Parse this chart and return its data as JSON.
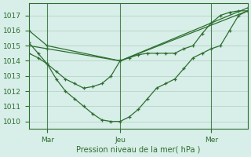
{
  "background_color": "#d8eee8",
  "grid_color": "#b0d0c0",
  "line_color": "#2d6e30",
  "title": "Pression niveau de la mer( hPa )",
  "ylim": [
    1009.5,
    1017.8
  ],
  "yticks": [
    1010,
    1011,
    1012,
    1013,
    1014,
    1015,
    1016,
    1017
  ],
  "xlim": [
    0,
    96
  ],
  "vline_positions": [
    8,
    40,
    80
  ],
  "xtick_positions": [
    8,
    40,
    80
  ],
  "xtick_labels": [
    "Mar",
    "Jeu",
    "Mer"
  ],
  "series": [
    {
      "x": [
        0,
        8,
        40,
        96
      ],
      "y": [
        1016.0,
        1015.0,
        1014.0,
        1017.3
      ]
    },
    {
      "x": [
        0,
        8,
        40,
        96
      ],
      "y": [
        1015.0,
        1014.8,
        1014.0,
        1017.5
      ]
    },
    {
      "x": [
        0,
        4,
        8,
        12,
        16,
        20,
        24,
        28,
        32,
        36,
        40,
        44,
        48,
        52,
        56,
        60,
        64,
        68,
        72,
        76,
        80,
        84,
        88,
        92,
        96
      ],
      "y": [
        1015.2,
        1014.5,
        1013.8,
        1012.8,
        1012.0,
        1011.5,
        1011.0,
        1010.5,
        1010.1,
        1010.0,
        1010.0,
        1010.3,
        1010.8,
        1011.5,
        1012.2,
        1012.5,
        1012.8,
        1013.5,
        1014.2,
        1014.5,
        1014.8,
        1015.0,
        1016.0,
        1017.0,
        1017.3
      ]
    },
    {
      "x": [
        0,
        4,
        8,
        12,
        16,
        20,
        24,
        28,
        32,
        36,
        40,
        44,
        48,
        52,
        56,
        60,
        64,
        68,
        72,
        76,
        80,
        84,
        88,
        92,
        96
      ],
      "y": [
        1014.5,
        1014.2,
        1013.8,
        1013.3,
        1012.8,
        1012.5,
        1012.2,
        1012.3,
        1012.5,
        1013.0,
        1014.0,
        1014.2,
        1014.4,
        1014.5,
        1014.5,
        1014.5,
        1014.5,
        1014.8,
        1015.0,
        1015.8,
        1016.5,
        1017.0,
        1017.2,
        1017.3,
        1017.3
      ]
    }
  ]
}
